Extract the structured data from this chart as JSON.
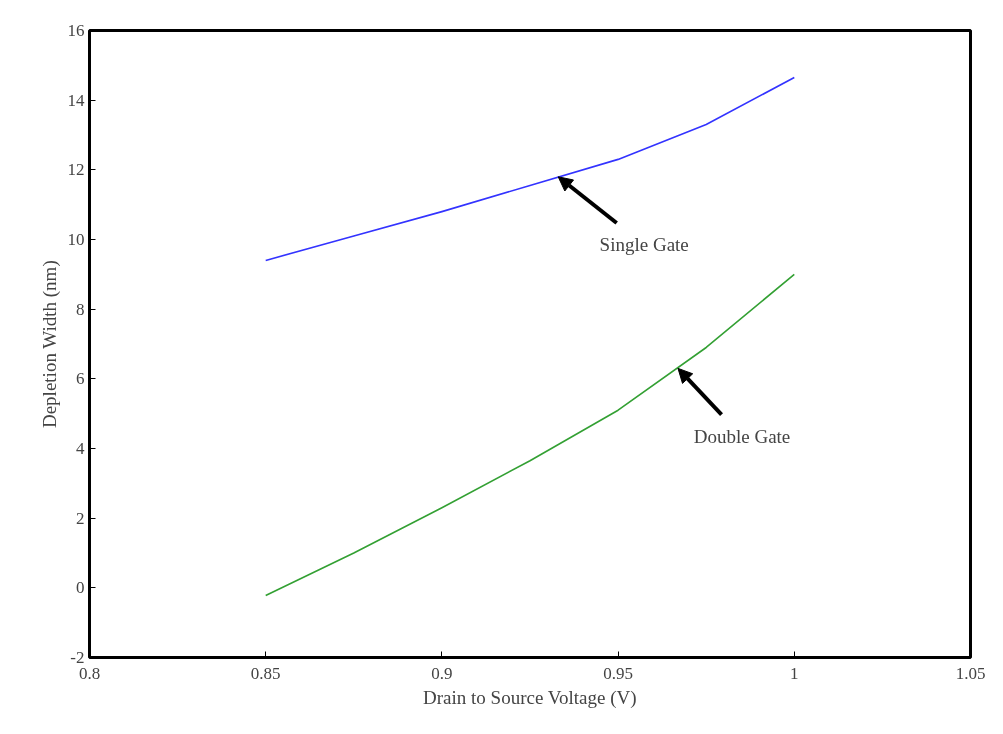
{
  "chart_data": {
    "type": "line",
    "xlabel": "Drain to Source Voltage (V)",
    "ylabel": "Depletion Width (nm)",
    "x": [
      0.85,
      0.875,
      0.9,
      0.925,
      0.95,
      0.975,
      1.0
    ],
    "series": [
      {
        "color": "#3333ff",
        "values": [
          9.4,
          10.1,
          10.8,
          11.55,
          12.3,
          13.3,
          14.65
        ]
      },
      {
        "color": "#33a033",
        "values": [
          -0.22,
          1.0,
          2.3,
          3.65,
          5.1,
          6.9,
          9.0
        ]
      }
    ],
    "annotations": [
      {
        "text": "Single Gate",
        "x": 0.933,
        "y": 11.8
      },
      {
        "text": "Double Gate",
        "x": 0.967,
        "y": 6.3
      }
    ],
    "xlim": [
      0.8,
      1.05
    ],
    "ylim": [
      -2,
      16
    ],
    "xticks": [
      0.8,
      0.85,
      0.9,
      0.95,
      1,
      1.05
    ],
    "yticks": [
      -2,
      0,
      2,
      4,
      6,
      8,
      10,
      12,
      14,
      16
    ],
    "grid": false,
    "marker": "none",
    "line_style": "solid"
  }
}
